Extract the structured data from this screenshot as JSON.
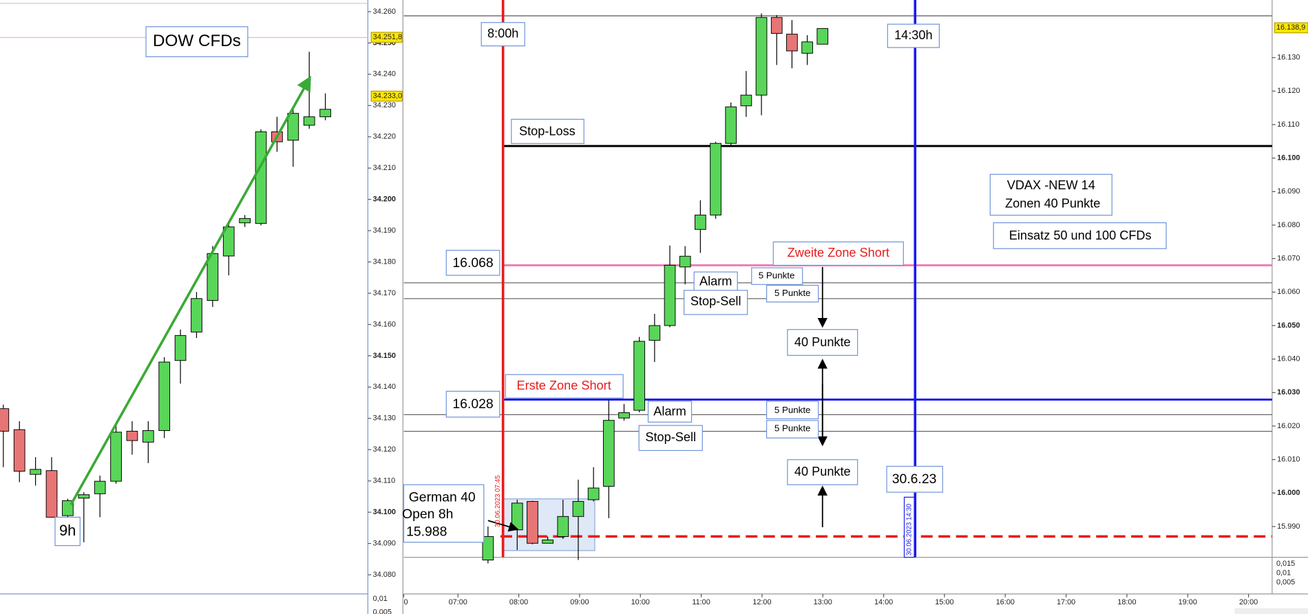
{
  "left_chart": {
    "title": "DOW CFDs",
    "marker": "9h",
    "yticks": [
      {
        "value": 34.26,
        "label": "34.260"
      },
      {
        "value": 34.25,
        "label": "34.250"
      },
      {
        "value": 34.24,
        "label": "34.240"
      },
      {
        "value": 34.23,
        "label": "34.230"
      },
      {
        "value": 34.22,
        "label": "34.220"
      },
      {
        "value": 34.21,
        "label": "34.210"
      },
      {
        "value": 34.2,
        "label": "34.200"
      },
      {
        "value": 34.19,
        "label": "34.190"
      },
      {
        "value": 34.18,
        "label": "34.180"
      },
      {
        "value": 34.17,
        "label": "34.170"
      },
      {
        "value": 34.16,
        "label": "34.160"
      },
      {
        "value": 34.15,
        "label": "34.150"
      },
      {
        "value": 34.14,
        "label": "34.140"
      },
      {
        "value": 34.13,
        "label": "34.130"
      },
      {
        "value": 34.12,
        "label": "34.120"
      },
      {
        "value": 34.11,
        "label": "34.110"
      },
      {
        "value": 34.1,
        "label": "34.100"
      },
      {
        "value": 34.09,
        "label": "34.090"
      },
      {
        "value": 34.08,
        "label": "34.080"
      }
    ],
    "ylim": [
      34.08,
      34.26
    ],
    "price_flags": [
      {
        "value": 34.2518,
        "label": "34.251,8"
      },
      {
        "value": 34.233,
        "label": "34.233,0"
      }
    ],
    "indicator_ticks": [
      "0,01",
      "0,005"
    ],
    "candles": [
      {
        "o": 34.1331,
        "h": 34.1344,
        "l": 34.1144,
        "c": 34.1259
      },
      {
        "o": 34.1264,
        "h": 34.1291,
        "l": 34.1096,
        "c": 34.1131
      },
      {
        "o": 34.1121,
        "h": 34.1176,
        "l": 34.1085,
        "c": 34.1137
      },
      {
        "o": 34.1133,
        "h": 34.1176,
        "l": 34.0984,
        "c": 34.0984
      },
      {
        "o": 34.0989,
        "h": 34.1043,
        "l": 34.0931,
        "c": 34.1037
      },
      {
        "o": 34.1045,
        "h": 34.1064,
        "l": 34.0904,
        "c": 34.1056
      },
      {
        "o": 34.1059,
        "h": 34.1117,
        "l": 34.0984,
        "c": 34.1099
      },
      {
        "o": 34.1099,
        "h": 34.1277,
        "l": 34.1091,
        "c": 34.1256
      },
      {
        "o": 34.1259,
        "h": 34.1291,
        "l": 34.1184,
        "c": 34.1229
      },
      {
        "o": 34.1224,
        "h": 34.1291,
        "l": 34.1157,
        "c": 34.1261
      },
      {
        "o": 34.1261,
        "h": 34.1496,
        "l": 34.1237,
        "c": 34.148
      },
      {
        "o": 34.1485,
        "h": 34.1584,
        "l": 34.1411,
        "c": 34.1565
      },
      {
        "o": 34.1576,
        "h": 34.1704,
        "l": 34.1557,
        "c": 34.1683
      },
      {
        "o": 34.1677,
        "h": 34.1851,
        "l": 34.1656,
        "c": 34.1827
      },
      {
        "o": 34.1819,
        "h": 34.1923,
        "l": 34.1757,
        "c": 34.1912
      },
      {
        "o": 34.1925,
        "h": 34.195,
        "l": 34.1912,
        "c": 34.1939
      },
      {
        "o": 34.1923,
        "h": 34.2224,
        "l": 34.1917,
        "c": 34.2216
      },
      {
        "o": 34.2216,
        "h": 34.2264,
        "l": 34.2152,
        "c": 34.2184
      },
      {
        "o": 34.2189,
        "h": 34.2291,
        "l": 34.2104,
        "c": 34.2275
      },
      {
        "o": 34.2237,
        "h": 34.2472,
        "l": 34.2226,
        "c": 34.2264
      },
      {
        "o": 34.2264,
        "h": 34.2339,
        "l": 34.2253,
        "c": 34.2288
      }
    ]
  },
  "right_chart": {
    "yticks": [
      {
        "value": 16.13,
        "label": "16.130"
      },
      {
        "value": 16.12,
        "label": "16.120"
      },
      {
        "value": 16.11,
        "label": "16.110"
      },
      {
        "value": 16.1,
        "label": "16.100"
      },
      {
        "value": 16.09,
        "label": "16.090"
      },
      {
        "value": 16.08,
        "label": "16.080"
      },
      {
        "value": 16.07,
        "label": "16.070"
      },
      {
        "value": 16.06,
        "label": "16.060"
      },
      {
        "value": 16.05,
        "label": "16.050"
      },
      {
        "value": 16.04,
        "label": "16.040"
      },
      {
        "value": 16.03,
        "label": "16.030"
      },
      {
        "value": 16.02,
        "label": "16.020"
      },
      {
        "value": 16.01,
        "label": "16.010"
      },
      {
        "value": 16.0,
        "label": "16.000"
      },
      {
        "value": 15.99,
        "label": "15.990"
      }
    ],
    "ylim": [
      15.9849,
      16.1435
    ],
    "xticks": [
      "0",
      "07:00",
      "08:00",
      "09:00",
      "10:00",
      "11:00",
      "12:00",
      "13:00",
      "14:00",
      "15:00",
      "16:00",
      "17:00",
      "18:00",
      "19:00",
      "20:00"
    ],
    "price_flag": {
      "value": 16.1389,
      "label": "16.138,9"
    },
    "indicator_ticks": [
      "0,015",
      "0,01",
      "0,005"
    ],
    "candles": [
      {
        "o": 15.98,
        "h": 15.99,
        "l": 15.979,
        "c": 15.987
      },
      {
        "o": 15.989,
        "h": 15.998,
        "l": 15.983,
        "c": 15.997
      },
      {
        "o": 15.9975,
        "h": 15.9977,
        "l": 15.9847,
        "c": 15.985
      },
      {
        "o": 15.985,
        "h": 15.987,
        "l": 15.9851,
        "c": 15.986
      },
      {
        "o": 15.987,
        "h": 15.998,
        "l": 15.9863,
        "c": 15.993
      },
      {
        "o": 15.993,
        "h": 16.004,
        "l": 15.98,
        "c": 15.9975
      },
      {
        "o": 15.998,
        "h": 16.0077,
        "l": 15.9975,
        "c": 16.0015
      },
      {
        "o": 16.002,
        "h": 16.0276,
        "l": 15.9925,
        "c": 16.0217
      },
      {
        "o": 16.0224,
        "h": 16.0266,
        "l": 16.0216,
        "c": 16.024
      },
      {
        "o": 16.0247,
        "h": 16.0466,
        "l": 16.0241,
        "c": 16.0453
      },
      {
        "o": 16.0456,
        "h": 16.0535,
        "l": 16.0391,
        "c": 16.05
      },
      {
        "o": 16.05,
        "h": 16.0739,
        "l": 16.0495,
        "c": 16.068
      },
      {
        "o": 16.0675,
        "h": 16.0737,
        "l": 16.0623,
        "c": 16.0707
      },
      {
        "o": 16.0787,
        "h": 16.0874,
        "l": 16.0717,
        "c": 16.083
      },
      {
        "o": 16.083,
        "h": 16.1049,
        "l": 16.0819,
        "c": 16.1044
      },
      {
        "o": 16.1044,
        "h": 16.1166,
        "l": 16.1039,
        "c": 16.1153
      },
      {
        "o": 16.1156,
        "h": 16.126,
        "l": 16.1123,
        "c": 16.1188
      },
      {
        "o": 16.1188,
        "h": 16.1432,
        "l": 16.1128,
        "c": 16.142
      },
      {
        "o": 16.142,
        "h": 16.1427,
        "l": 16.1278,
        "c": 16.1372
      },
      {
        "o": 16.137,
        "h": 16.1412,
        "l": 16.1268,
        "c": 16.132
      },
      {
        "o": 16.1313,
        "h": 16.1367,
        "l": 16.1278,
        "c": 16.1347
      },
      {
        "o": 16.134,
        "h": 16.1387,
        "l": 16.134,
        "c": 16.1387
      }
    ],
    "annotations": {
      "start": "8:00h",
      "end": "14:30h",
      "stop_loss": "Stop-Loss",
      "vdax": [
        "VDAX -NEW 14",
        "Zonen 40 Punkte"
      ],
      "stake": "Einsatz 50 und 100 CFDs",
      "upper_level": "16.068",
      "upper_zone": "Zweite Zone Short",
      "upper_points": [
        "5 Punkte",
        "5 Punkte"
      ],
      "upper_alarm": "Alarm",
      "upper_stop_sell": "Stop-Sell",
      "range_upper": "40 Punkte",
      "lower_level": "16.028",
      "lower_zone": "Erste Zone Short",
      "lower_points": [
        "5 Punkte",
        "5 Punkte"
      ],
      "lower_alarm": "Alarm",
      "lower_stop_sell": "Stop-Sell",
      "range_lower": "40 Punkte",
      "date": "30.6.23",
      "open_note": [
        "German 40",
        "Open 8h",
        "15.988"
      ],
      "start_stamp": "30.06.2023 07:45",
      "end_stamp": "30.06.2023 14:30"
    }
  }
}
